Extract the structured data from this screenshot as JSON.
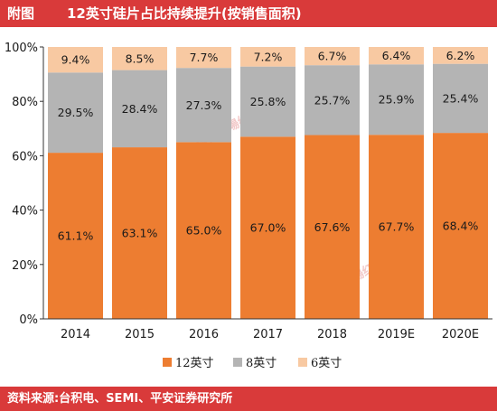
{
  "header": {
    "figure_label": "附图",
    "title": "12英寸硅片占比持续提升(按销售面积)"
  },
  "footer": {
    "source": "资料来源:台积电、SEMI、平安证券研究所"
  },
  "watermark": {
    "text": "證券市場红週刊"
  },
  "colors": {
    "header_bg": "#d93a3a",
    "s12": "#ed7d31",
    "s8": "#b4b4b4",
    "s6": "#f8c9a2"
  },
  "chart_data": {
    "type": "bar",
    "stacked": true,
    "categories": [
      "2014",
      "2015",
      "2016",
      "2017",
      "2018",
      "2019E",
      "2020E"
    ],
    "series": [
      {
        "name": "12英寸",
        "color": "#ed7d31",
        "values": [
          61.1,
          63.1,
          65.0,
          67.0,
          67.6,
          67.7,
          68.4
        ],
        "labels": [
          "61.1%",
          "63.1%",
          "65.0%",
          "67.0%",
          "67.6%",
          "67.7%",
          "68.4%"
        ]
      },
      {
        "name": "8英寸",
        "color": "#b4b4b4",
        "values": [
          29.5,
          28.4,
          27.3,
          25.8,
          25.7,
          25.9,
          25.4
        ],
        "labels": [
          "29.5%",
          "28.4%",
          "27.3%",
          "25.8%",
          "25.7%",
          "25.9%",
          "25.4%"
        ]
      },
      {
        "name": "6英寸",
        "color": "#f8c9a2",
        "values": [
          9.4,
          8.5,
          7.7,
          7.2,
          6.7,
          6.4,
          6.2
        ],
        "labels": [
          "9.4%",
          "8.5%",
          "7.7%",
          "7.2%",
          "6.7%",
          "6.4%",
          "6.2%"
        ]
      }
    ],
    "ylim": [
      0,
      100
    ],
    "yticks": [
      "0%",
      "20%",
      "40%",
      "60%",
      "80%",
      "100%"
    ],
    "ytick_values": [
      0,
      20,
      40,
      60,
      80,
      100
    ],
    "legend_position": "bottom",
    "grid": false
  }
}
